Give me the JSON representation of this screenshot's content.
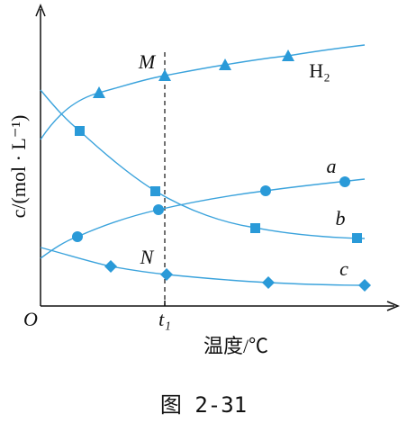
{
  "axes": {
    "y_label": "c/(mol · L⁻¹)",
    "x_label": "温度/℃",
    "origin": "O",
    "x_marker": "t₁"
  },
  "curve_labels": {
    "point_m": "M",
    "point_n": "N",
    "h2": "H₂",
    "a": "a",
    "b": "b",
    "c": "c"
  },
  "caption": "图 2-31"
}
